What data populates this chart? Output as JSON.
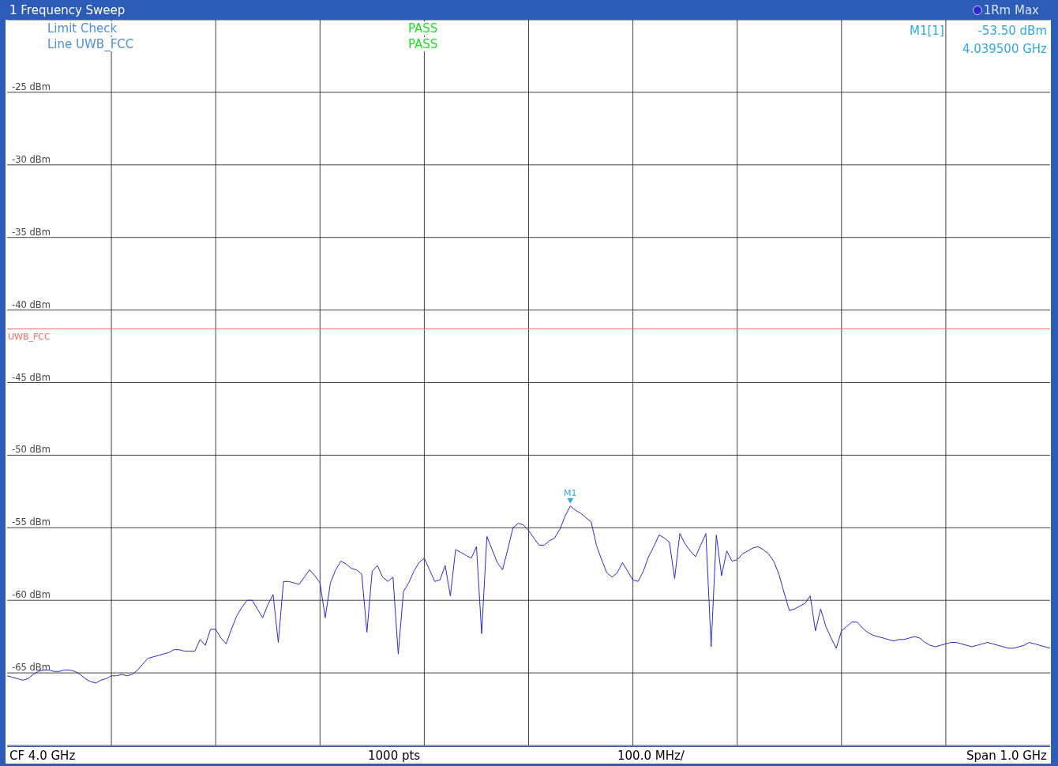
{
  "chart_data": {
    "type": "line",
    "title": "1 Frequency Sweep",
    "categories": [
      null,
      null,
      null,
      null,
      null,
      null,
      null,
      null,
      null,
      null,
      null,
      null,
      null,
      null,
      null,
      null,
      null,
      null,
      null,
      null,
      null,
      null,
      null,
      null,
      null,
      null,
      null,
      null,
      null,
      null,
      null,
      null,
      null,
      null,
      null,
      null,
      null,
      null,
      null,
      null,
      null,
      null,
      null,
      null,
      null,
      null,
      null,
      null,
      null,
      null,
      null,
      null,
      null,
      null,
      null,
      null,
      null,
      null,
      null,
      null,
      null,
      null,
      null,
      null,
      null,
      null,
      null,
      null,
      null,
      null,
      null,
      null,
      null,
      null,
      null,
      null,
      null,
      null,
      null,
      null,
      null,
      null,
      null,
      null,
      null,
      null,
      null,
      null,
      null,
      null,
      null,
      null,
      null,
      null,
      null,
      null,
      null,
      null,
      null,
      null,
      null,
      null,
      null,
      null,
      null,
      null,
      null,
      null,
      null,
      null,
      null,
      null,
      null,
      null,
      null,
      null,
      null,
      null,
      null,
      null,
      null,
      null,
      null,
      null,
      null,
      null,
      null,
      null,
      null,
      null,
      null,
      null,
      null,
      null,
      null,
      null,
      null,
      null,
      null,
      null,
      null,
      null,
      null,
      null,
      null,
      null,
      null,
      null,
      null,
      null,
      null,
      null,
      null,
      null,
      null,
      null,
      null,
      null,
      null,
      null,
      null,
      null,
      null,
      null,
      null,
      null,
      null,
      null,
      null,
      null,
      null,
      null,
      null,
      null,
      null,
      null,
      null,
      null,
      null,
      null,
      null,
      null,
      null,
      null,
      null,
      null,
      null,
      null,
      null,
      null,
      null,
      null,
      null,
      null,
      null,
      null,
      null,
      null,
      null,
      null,
      null
    ],
    "series": [
      {
        "name": "1Rm Max",
        "color": "#2a2ad0",
        "values": [
          -65.2,
          -65.3,
          -65.4,
          -65.5,
          -65.4,
          -65.1,
          -64.9,
          -64.8,
          -64.8,
          -64.9,
          -64.9,
          -64.8,
          -64.8,
          -64.9,
          -65.1,
          -65.4,
          -65.6,
          -65.7,
          -65.5,
          -65.4,
          -65.2,
          -65.2,
          -65.1,
          -65.2,
          -65.1,
          -64.8,
          -64.4,
          -64.0,
          -63.9,
          -63.8,
          -63.7,
          -63.6,
          -63.4,
          -63.4,
          -63.5,
          -63.5,
          -63.5,
          -62.7,
          -63.1,
          -62.0,
          -62.0,
          -62.6,
          -63.0,
          -62.0,
          -61.1,
          -60.5,
          -60.0,
          -60.0,
          -60.6,
          -61.2,
          -60.3,
          -59.6,
          -62.9,
          -58.7,
          -58.7,
          -58.8,
          -58.9,
          -58.4,
          -57.9,
          -58.3,
          -58.8,
          -61.2,
          -58.8,
          -57.9,
          -57.3,
          -57.5,
          -57.8,
          -57.9,
          -58.2,
          -62.2,
          -58.0,
          -57.6,
          -58.4,
          -58.7,
          -58.4,
          -63.7,
          -59.4,
          -58.8,
          -58.0,
          -57.4,
          -57.1,
          -57.9,
          -58.7,
          -58.6,
          -57.6,
          -59.7,
          -56.5,
          -56.7,
          -56.9,
          -57.1,
          -56.3,
          -62.3,
          -55.6,
          -56.5,
          -57.4,
          -57.9,
          -56.5,
          -55.0,
          -54.7,
          -54.8,
          -55.2,
          -55.7,
          -56.2,
          -56.2,
          -55.9,
          -55.7,
          -55.1,
          -54.2,
          -53.5,
          -53.8,
          -54.0,
          -54.3,
          -54.6,
          -56.2,
          -57.2,
          -58.1,
          -58.4,
          -58.1,
          -57.4,
          -58.0,
          -58.6,
          -58.7,
          -58.0,
          -57.0,
          -56.3,
          -55.5,
          -55.7,
          -56.0,
          -58.5,
          -55.4,
          -56.1,
          -56.6,
          -57.0,
          -56.2,
          -55.4,
          -63.2,
          -55.5,
          -58.3,
          -56.6,
          -57.3,
          -57.2,
          -56.8,
          -56.6,
          -56.4,
          -56.3,
          -56.5,
          -56.8,
          -57.3,
          -58.2,
          -59.5,
          -60.7,
          -60.6,
          -60.4,
          -60.2,
          -59.7,
          -62.1,
          -60.6,
          -61.8,
          -62.6,
          -63.3,
          -62.1,
          -61.8,
          -61.5,
          -61.5,
          -61.9,
          -62.2,
          -62.4,
          -62.5,
          -62.6,
          -62.7,
          -62.8,
          -62.7,
          -62.7,
          -62.6,
          -62.5,
          -62.6,
          -62.9,
          -63.1,
          -63.2,
          -63.1,
          -63.0,
          -62.9,
          -62.9,
          -63.0,
          -63.1,
          -63.2,
          -63.1,
          -63.0,
          -62.9,
          -63.0,
          -63.1,
          -63.2,
          -63.3,
          -63.3,
          -63.2,
          -63.1,
          -62.9,
          -63.0,
          -63.1,
          -63.2,
          -63.3
        ]
      }
    ],
    "ylim": [
      -70,
      -20
    ],
    "yticks": [
      {
        "value": -25,
        "label": "-25 dBm"
      },
      {
        "value": -30,
        "label": "-30 dBm"
      },
      {
        "value": -35,
        "label": "-35 dBm"
      },
      {
        "value": -40,
        "label": "-40 dBm"
      },
      {
        "value": -45,
        "label": "-45 dBm"
      },
      {
        "value": -50,
        "label": "-50 dBm"
      },
      {
        "value": -55,
        "label": "-55 dBm"
      },
      {
        "value": -60,
        "label": "-60 dBm"
      },
      {
        "value": -65,
        "label": "-65 dBm"
      }
    ],
    "tick_labels": "y",
    "grid": true,
    "legend": "top right",
    "ref_lines": [
      {
        "axis": "y",
        "value": -41.3,
        "label": "UWB_FCC",
        "color": "#ff6666"
      }
    ],
    "annotations": [
      "Limit Check",
      "Line UWB_FCC",
      "PASS",
      "PASS",
      "M1[1]",
      "-53.50 dBm",
      "4.039500 GHz",
      {
        "text": "M1",
        "y": -53.5
      },
      "CF 4.0 GHz",
      "1000 pts",
      "100.0 MHz/",
      "Span 1.0 GHz"
    ]
  }
}
